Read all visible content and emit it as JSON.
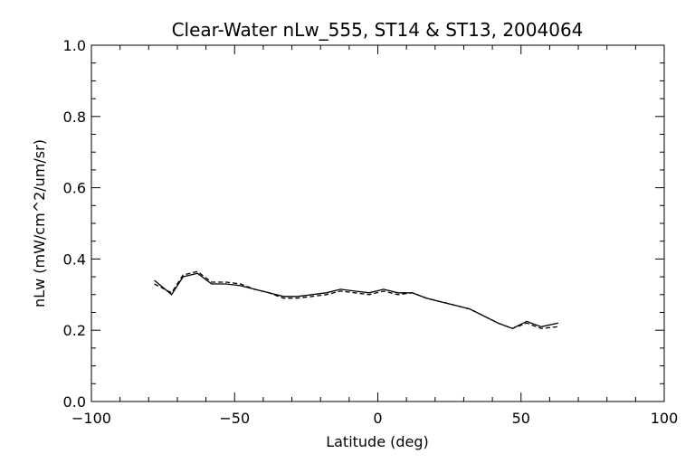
{
  "chart_data": {
    "type": "line",
    "title": "Clear-Water nLw_555, ST14 & ST13, 2004064",
    "xlabel": "Latitude (deg)",
    "ylabel": "nLw (mW/cm^2/um/sr)",
    "xlim": [
      -100,
      100
    ],
    "ylim": [
      0.0,
      1.0
    ],
    "x_ticks": [
      "−100",
      "−50",
      "0",
      "50",
      "100"
    ],
    "y_ticks": [
      "0.0",
      "0.2",
      "0.4",
      "0.6",
      "0.8",
      "1.0"
    ],
    "grid": false,
    "series": [
      {
        "style": "solid",
        "color": "#000000",
        "x": [
          -78,
          -72,
          -68,
          -63,
          -58,
          -53,
          -48,
          -43,
          -38,
          -33,
          -28,
          -23,
          -18,
          -13,
          -8,
          -3,
          2,
          7,
          12,
          17,
          22,
          27,
          32,
          37,
          42,
          47,
          52,
          57,
          63
        ],
        "y": [
          0.34,
          0.3,
          0.35,
          0.36,
          0.33,
          0.33,
          0.325,
          0.315,
          0.305,
          0.295,
          0.295,
          0.3,
          0.305,
          0.315,
          0.31,
          0.305,
          0.315,
          0.305,
          0.305,
          0.29,
          0.28,
          0.27,
          0.26,
          0.24,
          0.22,
          0.205,
          0.225,
          0.21,
          0.22
        ]
      },
      {
        "style": "dashed",
        "color": "#000000",
        "x": [
          -78,
          -72,
          -68,
          -63,
          -58,
          -53,
          -48,
          -43,
          -38,
          -33,
          -28,
          -23,
          -18,
          -13,
          -8,
          -3,
          2,
          7,
          12,
          17,
          22,
          27,
          32,
          37,
          42,
          47,
          52,
          57,
          63
        ],
        "y": [
          0.33,
          0.305,
          0.355,
          0.365,
          0.335,
          0.335,
          0.33,
          0.315,
          0.305,
          0.29,
          0.29,
          0.295,
          0.3,
          0.31,
          0.305,
          0.3,
          0.31,
          0.3,
          0.305,
          0.29,
          0.28,
          0.27,
          0.26,
          0.24,
          0.22,
          0.205,
          0.22,
          0.205,
          0.21
        ]
      }
    ]
  }
}
